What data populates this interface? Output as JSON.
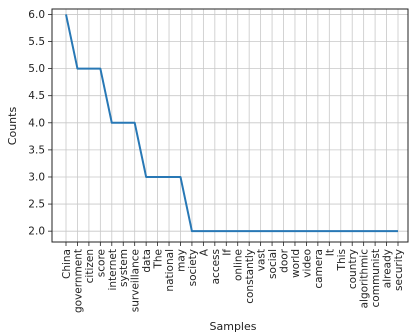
{
  "chart_data": {
    "type": "line",
    "title": "",
    "xlabel": "Samples",
    "ylabel": "Counts",
    "ylim": [
      1.8,
      6.1
    ],
    "yticks": [
      "2.0",
      "2.5",
      "3.0",
      "3.5",
      "4.0",
      "4.5",
      "5.0",
      "5.5",
      "6.0"
    ],
    "grid": true,
    "categories": [
      "China",
      "government",
      "citizen",
      "score",
      "internet",
      "system",
      "surveillance",
      "data",
      "The",
      "national",
      "may",
      "society",
      "A",
      "access",
      "If",
      "online",
      "constantly",
      "vast",
      "social",
      "door",
      "world",
      "video",
      "camera",
      "It",
      "This",
      "country",
      "algorithmic",
      "communist",
      "already",
      "security"
    ],
    "values": [
      6,
      5,
      5,
      5,
      4,
      4,
      4,
      3,
      3,
      3,
      3,
      2,
      2,
      2,
      2,
      2,
      2,
      2,
      2,
      2,
      2,
      2,
      2,
      2,
      2,
      2,
      2,
      2,
      2,
      2
    ],
    "color": "#2878b5"
  }
}
